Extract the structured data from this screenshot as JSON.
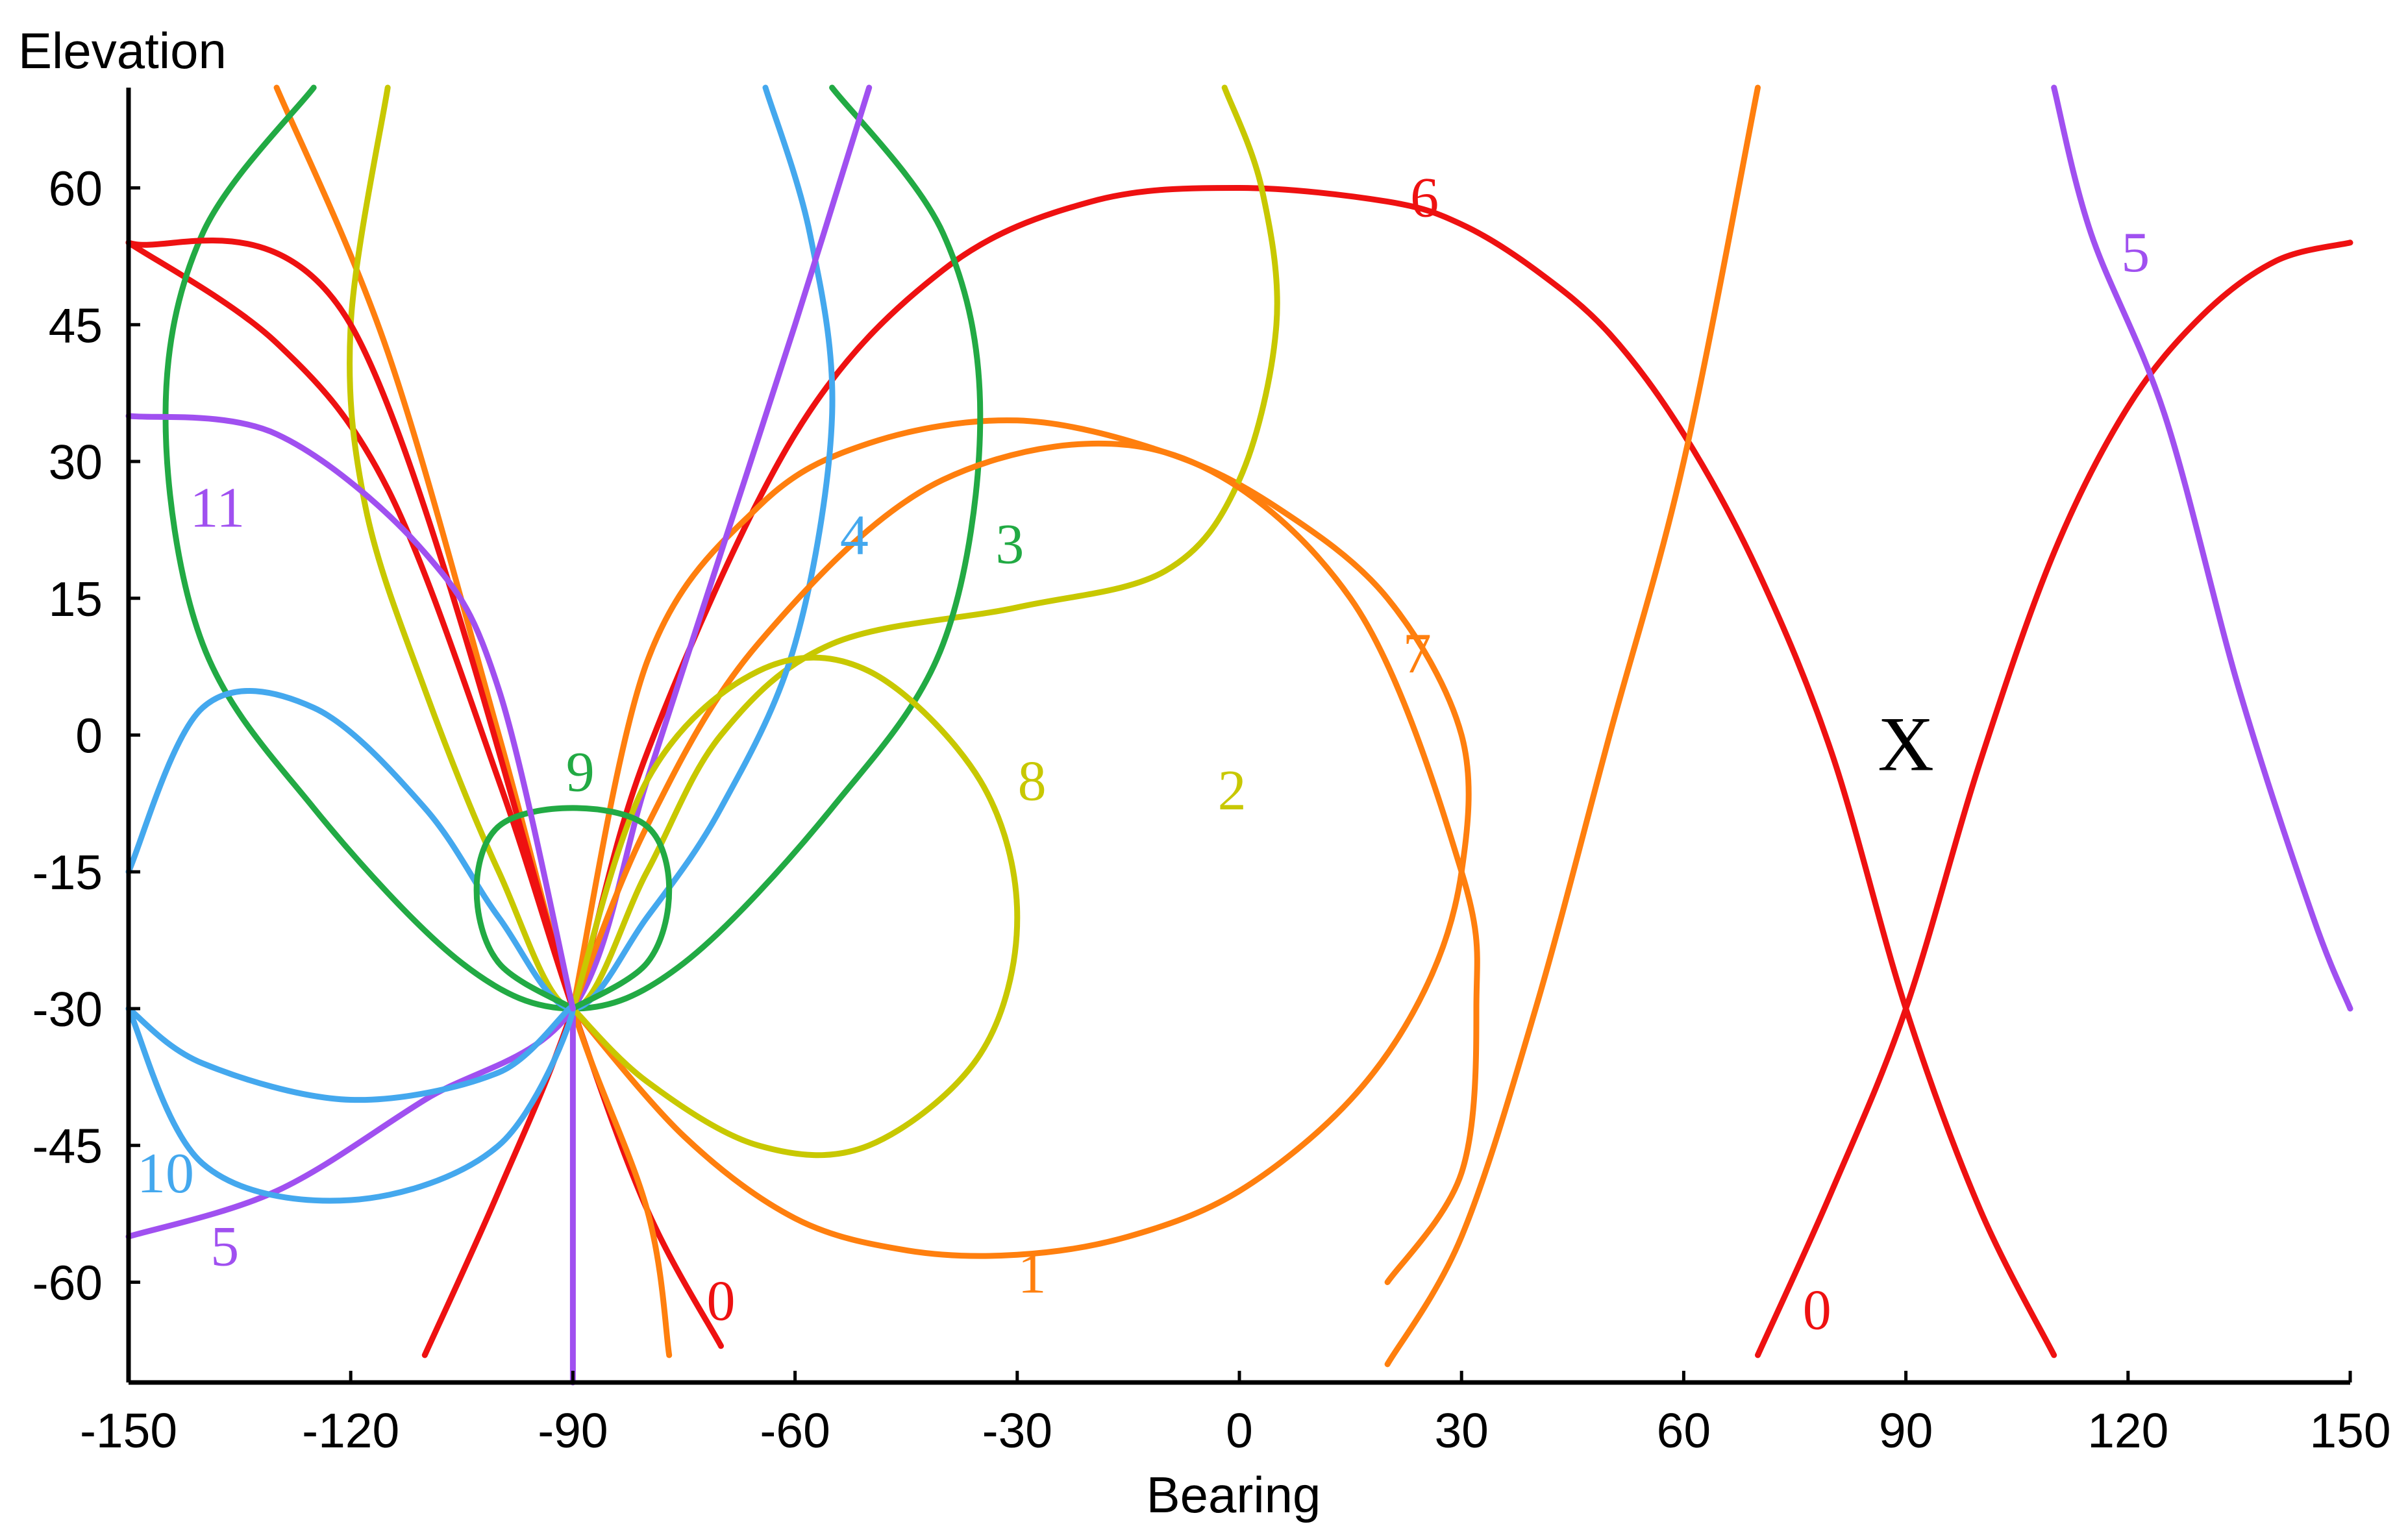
{
  "chart_data": {
    "type": "line",
    "title": "",
    "xlabel": "Bearing",
    "ylabel": "Elevation",
    "xlim": [
      -150,
      150
    ],
    "ylim": [
      -71,
      71
    ],
    "xticks": [
      -150,
      -120,
      -90,
      -60,
      -30,
      0,
      30,
      60,
      90,
      120,
      150
    ],
    "yticks": [
      60,
      45,
      30,
      15,
      0,
      -15,
      -30,
      -45,
      -60
    ],
    "grid": false,
    "legend": "none",
    "colors": {
      "red": "#ee1111",
      "orange": "#ff7f0e",
      "yellow": "#c8c800",
      "green": "#22aa44",
      "blue": "#44a8ee",
      "purple": "#a050f0"
    },
    "series": [
      {
        "label": "0",
        "color": "#ee1111",
        "points": [
          [
            -150,
            54
          ],
          [
            -130,
            43
          ],
          [
            -115,
            27
          ],
          [
            -100,
            -5
          ],
          [
            -90,
            -30
          ],
          [
            -80,
            -52
          ],
          [
            -70,
            -67
          ]
        ]
      },
      {
        "label": "0",
        "color": "#ee1111",
        "points": [
          [
            -110,
            -68
          ],
          [
            -100,
            -50
          ],
          [
            -90,
            -30
          ],
          [
            -80,
            -2
          ],
          [
            -60,
            33
          ],
          [
            -40,
            51
          ],
          [
            -20,
            58.5
          ],
          [
            0,
            60
          ],
          [
            20,
            58.5
          ],
          [
            30,
            56
          ],
          [
            40,
            51
          ],
          [
            50,
            44
          ],
          [
            60,
            33
          ],
          [
            70,
            18
          ],
          [
            80,
            -2
          ],
          [
            90,
            -30
          ],
          [
            100,
            -52
          ],
          [
            110,
            -68
          ]
        ]
      },
      {
        "label": "0",
        "color": "#ee1111",
        "points": [
          [
            70,
            -68
          ],
          [
            80,
            -50
          ],
          [
            90,
            -30
          ],
          [
            100,
            -3
          ],
          [
            110,
            20
          ],
          [
            120,
            36
          ],
          [
            130,
            46
          ],
          [
            140,
            52
          ],
          [
            150,
            54
          ]
        ]
      },
      {
        "label": "1",
        "color": "#ff7f0e",
        "points": [
          [
            -130,
            71
          ],
          [
            -115,
            42
          ],
          [
            -100,
            0
          ],
          [
            -90,
            -30
          ],
          [
            -80,
            -52
          ],
          [
            -77,
            -68
          ]
        ]
      },
      {
        "label": "1",
        "color": "#ff7f0e",
        "points": [
          [
            -90,
            -30
          ],
          [
            -75,
            -44
          ],
          [
            -60,
            -53
          ],
          [
            -45,
            -56.5
          ],
          [
            -30,
            -57
          ],
          [
            -15,
            -55
          ],
          [
            0,
            -50
          ],
          [
            15,
            -40
          ],
          [
            25,
            -28
          ],
          [
            30,
            -15
          ],
          [
            30,
            0
          ],
          [
            20,
            15
          ],
          [
            5,
            25
          ],
          [
            -10,
            31
          ],
          [
            -30,
            34.5
          ],
          [
            -50,
            32
          ],
          [
            -65,
            25
          ],
          [
            -80,
            8
          ],
          [
            -90,
            -30
          ]
        ]
      },
      {
        "label": "1",
        "color": "#ff7f0e",
        "points": [
          [
            20,
            -69
          ],
          [
            30,
            -55
          ],
          [
            40,
            -30
          ],
          [
            50,
            0
          ],
          [
            60,
            30
          ],
          [
            70,
            71
          ]
        ]
      },
      {
        "label": "2",
        "color": "#c8c800",
        "points": [
          [
            -115,
            71
          ],
          [
            -120,
            45
          ],
          [
            -118,
            25
          ],
          [
            -110,
            5
          ],
          [
            -100,
            -15
          ],
          [
            -90,
            -30
          ],
          [
            -80,
            -15
          ],
          [
            -70,
            0
          ],
          [
            -55,
            10
          ],
          [
            -30,
            14
          ],
          [
            -10,
            18
          ],
          [
            0,
            28
          ],
          [
            5,
            45
          ],
          [
            3,
            60
          ],
          [
            -2,
            71
          ]
        ]
      },
      {
        "label": "3",
        "color": "#22aa44",
        "points": [
          [
            -125,
            71
          ],
          [
            -140,
            55
          ],
          [
            -145,
            35
          ],
          [
            -140,
            10
          ],
          [
            -125,
            -8
          ],
          [
            -105,
            -25
          ],
          [
            -90,
            -30
          ],
          [
            -75,
            -25
          ],
          [
            -55,
            -8
          ],
          [
            -40,
            10
          ],
          [
            -35,
            35
          ],
          [
            -40,
            55
          ],
          [
            -55,
            71
          ]
        ]
      },
      {
        "label": "4",
        "color": "#44a8ee",
        "points": [
          [
            -64,
            71
          ],
          [
            -58,
            55
          ],
          [
            -55,
            35
          ],
          [
            -60,
            10
          ],
          [
            -70,
            -8
          ],
          [
            -80,
            -20
          ],
          [
            -90,
            -30
          ],
          [
            -100,
            -20
          ],
          [
            -110,
            -8
          ],
          [
            -125,
            3
          ],
          [
            -140,
            3
          ],
          [
            -150,
            -15
          ]
        ]
      },
      {
        "label": "5",
        "color": "#a050f0",
        "points": [
          [
            -150,
            -55
          ],
          [
            -130,
            -50
          ],
          [
            -110,
            -40
          ],
          [
            -90,
            -30
          ],
          [
            -80,
            -5
          ],
          [
            -70,
            20
          ],
          [
            -60,
            45
          ],
          [
            -50,
            71
          ]
        ]
      },
      {
        "label": "5",
        "color": "#a050f0",
        "points": [
          [
            -90,
            -71
          ],
          [
            -90,
            -30
          ]
        ]
      },
      {
        "label": "5",
        "color": "#a050f0",
        "points": [
          [
            110,
            71
          ],
          [
            115,
            55
          ],
          [
            125,
            35
          ],
          [
            135,
            5
          ],
          [
            145,
            -20
          ],
          [
            150,
            -30
          ]
        ]
      },
      {
        "label": "6",
        "color": "#ee1111",
        "points": [
          [
            -150,
            54
          ],
          [
            -120,
            45
          ],
          [
            -90,
            -30
          ]
        ]
      },
      {
        "label": "7",
        "color": "#ff7f0e",
        "points": [
          [
            -90,
            -30
          ],
          [
            -80,
            -10
          ],
          [
            -65,
            10
          ],
          [
            -40,
            28
          ],
          [
            -10,
            31
          ],
          [
            15,
            15
          ],
          [
            30,
            -15
          ],
          [
            32,
            -30
          ],
          [
            30,
            -48
          ],
          [
            20,
            -60
          ]
        ]
      },
      {
        "label": "8",
        "color": "#c8c800",
        "points": [
          [
            -90,
            -30
          ],
          [
            -80,
            -5
          ],
          [
            -65,
            7
          ],
          [
            -50,
            7
          ],
          [
            -35,
            -5
          ],
          [
            -30,
            -20
          ],
          [
            -35,
            -35
          ],
          [
            -50,
            -45
          ],
          [
            -65,
            -45
          ],
          [
            -80,
            -38
          ],
          [
            -90,
            -30
          ]
        ]
      },
      {
        "label": "9",
        "color": "#22aa44",
        "points": [
          [
            -90,
            -30
          ],
          [
            -100,
            -25
          ],
          [
            -103,
            -17
          ],
          [
            -100,
            -10
          ],
          [
            -90,
            -8
          ],
          [
            -80,
            -10
          ],
          [
            -77,
            -17
          ],
          [
            -80,
            -25
          ],
          [
            -90,
            -30
          ]
        ]
      },
      {
        "label": "10",
        "color": "#44a8ee",
        "points": [
          [
            -150,
            -30
          ],
          [
            -140,
            -36
          ],
          [
            -120,
            -40
          ],
          [
            -100,
            -37
          ],
          [
            -90,
            -30
          ],
          [
            -100,
            -45
          ],
          [
            -120,
            -51
          ],
          [
            -140,
            -47
          ],
          [
            -150,
            -30
          ]
        ]
      },
      {
        "label": "11",
        "color": "#a050f0",
        "points": [
          [
            -150,
            35
          ],
          [
            -130,
            33
          ],
          [
            -110,
            20
          ],
          [
            -100,
            5
          ],
          [
            -90,
            -30
          ]
        ]
      }
    ],
    "labels": [
      {
        "text": "0",
        "x": -70,
        "y": -62,
        "color": "#ee1111"
      },
      {
        "text": "0",
        "x": 78,
        "y": -63,
        "color": "#ee1111"
      },
      {
        "text": "1",
        "x": -28,
        "y": -59,
        "color": "#ff7f0e"
      },
      {
        "text": "2",
        "x": -1,
        "y": -6,
        "color": "#c8c800"
      },
      {
        "text": "3",
        "x": -31,
        "y": 21,
        "color": "#22aa44"
      },
      {
        "text": "4",
        "x": -52,
        "y": 22,
        "color": "#44a8ee"
      },
      {
        "text": "5",
        "x": -137,
        "y": -56,
        "color": "#a050f0"
      },
      {
        "text": "5",
        "x": 121,
        "y": 53,
        "color": "#a050f0"
      },
      {
        "text": "6",
        "x": 25,
        "y": 59,
        "color": "#ee1111"
      },
      {
        "text": "7",
        "x": 24,
        "y": 9,
        "color": "#ff7f0e"
      },
      {
        "text": "8",
        "x": -28,
        "y": -5,
        "color": "#c8c800"
      },
      {
        "text": "9",
        "x": -89,
        "y": -4,
        "color": "#22aa44"
      },
      {
        "text": "10",
        "x": -145,
        "y": -48,
        "color": "#44a8ee"
      },
      {
        "text": "11",
        "x": -138,
        "y": 25,
        "color": "#a050f0"
      }
    ],
    "markers": [
      {
        "text": "X",
        "x": 90,
        "y": -1
      }
    ]
  }
}
